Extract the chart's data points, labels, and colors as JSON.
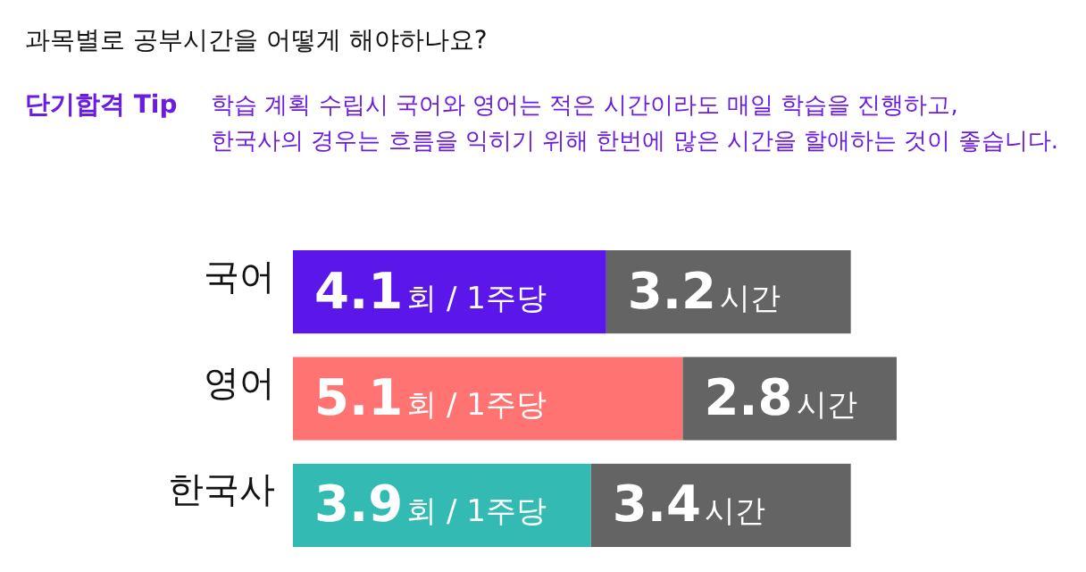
{
  "chart_data": {
    "type": "bar",
    "orientation": "horizontal",
    "stacked": true,
    "title": "과목별로 공부시간을 어떻게 해야하나요?",
    "subtitle": "단기합격 Tip",
    "annotations": [
      "학습 계획 수립시 국어와 영어는 적은 시간이라도 매일 학습을 진행하고,",
      "한국사의 경우는 흐름을 익히기 위해 한번에 많은 시간을 할애하는 것이 좋습니다."
    ],
    "categories": [
      "국어",
      "영어",
      "한국사"
    ],
    "tick_labels": "y",
    "series": [
      {
        "colors": [
          "#5b17ea",
          "#ff7373",
          "#33bbb3"
        ],
        "values": [
          4.1,
          5.1,
          3.9
        ],
        "value_labels": [
          "4.1회 / 1주당",
          "5.1회 / 1주당",
          "3.9회 / 1주당"
        ]
      },
      {
        "color": "#646464",
        "values": [
          3.2,
          2.8,
          3.4
        ],
        "value_labels": [
          "3.2시간",
          "2.8시간",
          "3.4시간"
        ]
      }
    ]
  }
}
